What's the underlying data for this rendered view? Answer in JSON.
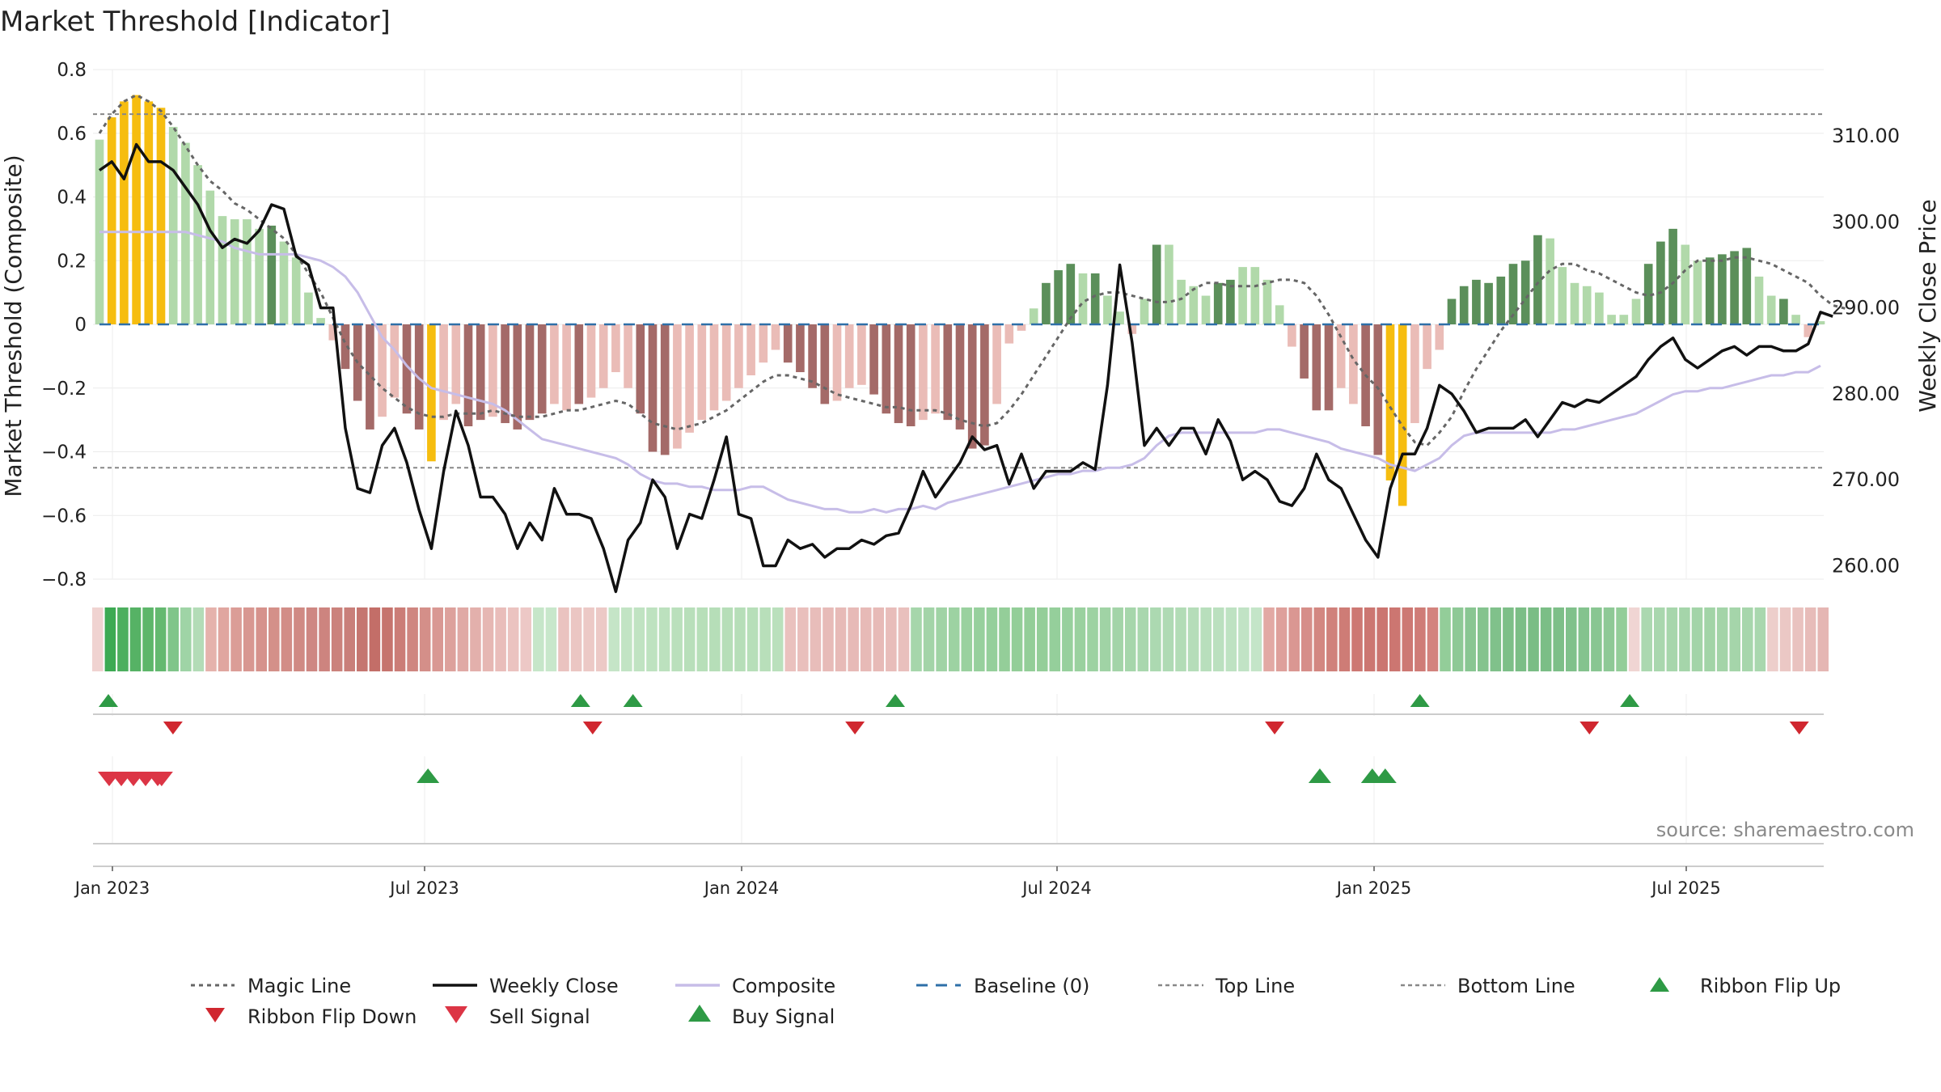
{
  "colors": {
    "bull_strong": "#5b8f5a",
    "bull_light": "#b1d9aa",
    "bear_strong": "#a46a68",
    "bear_light": "#eabcb7",
    "extreme": "#f6bd0f",
    "close_line": "#111111",
    "composite_line": "#c7bde8",
    "magic_line": "#666666",
    "baseline": "#2e6fa8",
    "threshold_line": "#888888",
    "signal_up": "#2e9a45",
    "signal_down": "#d0272f",
    "sell_signal": "#dc3545"
  },
  "chart_data": {
    "type": "bar",
    "title": "Market Threshold [Indicator]",
    "ylabel": "Market Threshold (Composite)",
    "y2label": "Weekly Close Price",
    "ylim": [
      -0.8,
      0.8
    ],
    "y2lim": [
      258,
      316
    ],
    "y_ticks": [
      "0.8",
      "0.6",
      "0.4",
      "0.2",
      "0",
      "−0.2",
      "−0.4",
      "−0.6",
      "−0.8"
    ],
    "y2_ticks": [
      "310.00",
      "300.00",
      "290.00",
      "280.00",
      "270.00",
      "260.00"
    ],
    "x_ticks": [
      "Jan 2023",
      "Jul 2023",
      "Jan 2024",
      "Jul 2024",
      "Jan 2025",
      "Jul 2025"
    ],
    "top_line": 0.66,
    "bottom_line": -0.45,
    "source": "source: sharemaestro.com",
    "composite_bars": [
      0.58,
      0.65,
      0.7,
      0.72,
      0.7,
      0.68,
      0.62,
      0.57,
      0.5,
      0.42,
      0.34,
      0.33,
      0.33,
      0.3,
      0.31,
      0.26,
      0.21,
      0.1,
      0.02,
      -0.05,
      -0.14,
      -0.24,
      -0.33,
      -0.29,
      -0.23,
      -0.28,
      -0.33,
      -0.43,
      -0.3,
      -0.25,
      -0.32,
      -0.3,
      -0.29,
      -0.31,
      -0.33,
      -0.3,
      -0.28,
      -0.25,
      -0.27,
      -0.25,
      -0.23,
      -0.2,
      -0.15,
      -0.2,
      -0.28,
      -0.4,
      -0.41,
      -0.39,
      -0.34,
      -0.3,
      -0.27,
      -0.24,
      -0.2,
      -0.16,
      -0.12,
      -0.08,
      -0.12,
      -0.15,
      -0.2,
      -0.25,
      -0.24,
      -0.2,
      -0.19,
      -0.22,
      -0.28,
      -0.31,
      -0.32,
      -0.3,
      -0.28,
      -0.3,
      -0.33,
      -0.39,
      -0.38,
      -0.25,
      -0.06,
      -0.02,
      0.05,
      0.13,
      0.17,
      0.19,
      0.16,
      0.16,
      0.09,
      0.04,
      -0.03,
      0.08,
      0.25,
      0.25,
      0.14,
      0.12,
      0.09,
      0.13,
      0.14,
      0.18,
      0.18,
      0.14,
      0.06,
      -0.07,
      -0.17,
      -0.27,
      -0.27,
      -0.2,
      -0.25,
      -0.32,
      -0.41,
      -0.49,
      -0.57,
      -0.31,
      -0.14,
      -0.08,
      0.08,
      0.12,
      0.14,
      0.13,
      0.15,
      0.19,
      0.2,
      0.28,
      0.27,
      0.18,
      0.13,
      0.12,
      0.1,
      0.03,
      0.03,
      0.08,
      0.19,
      0.26,
      0.3,
      0.25,
      0.2,
      0.21,
      0.22,
      0.23,
      0.24,
      0.15,
      0.09,
      0.08,
      0.03,
      -0.04,
      0.01
    ],
    "bar_colors": [
      "bull_light",
      "extreme",
      "extreme",
      "extreme",
      "extreme",
      "extreme",
      "bull_light",
      "bull_light",
      "bull_light",
      "bull_light",
      "bull_light",
      "bull_light",
      "bull_light",
      "bull_light",
      "bull_strong",
      "bull_light",
      "bull_light",
      "bull_light",
      "bull_light",
      "bear_light",
      "bear_strong",
      "bear_strong",
      "bear_strong",
      "bear_light",
      "bear_light",
      "bear_strong",
      "bear_strong",
      "extreme",
      "bear_light",
      "bear_light",
      "bear_strong",
      "bear_strong",
      "bear_light",
      "bear_strong",
      "bear_strong",
      "bear_strong",
      "bear_strong",
      "bear_light",
      "bear_light",
      "bear_strong",
      "bear_light",
      "bear_light",
      "bear_light",
      "bear_light",
      "bear_strong",
      "bear_strong",
      "bear_strong",
      "bear_light",
      "bear_light",
      "bear_light",
      "bear_light",
      "bear_light",
      "bear_light",
      "bear_light",
      "bear_light",
      "bear_light",
      "bear_strong",
      "bear_strong",
      "bear_strong",
      "bear_strong",
      "bear_light",
      "bear_light",
      "bear_light",
      "bear_strong",
      "bear_strong",
      "bear_strong",
      "bear_strong",
      "bear_light",
      "bear_light",
      "bear_strong",
      "bear_strong",
      "bear_strong",
      "bear_strong",
      "bear_light",
      "bear_light",
      "bear_light",
      "bull_light",
      "bull_strong",
      "bull_strong",
      "bull_strong",
      "bull_light",
      "bull_strong",
      "bull_light",
      "bull_light",
      "bear_light",
      "bull_light",
      "bull_strong",
      "bull_light",
      "bull_light",
      "bull_light",
      "bull_light",
      "bull_strong",
      "bull_strong",
      "bull_light",
      "bull_light",
      "bull_light",
      "bull_light",
      "bear_light",
      "bear_strong",
      "bear_strong",
      "bear_strong",
      "bear_light",
      "bear_light",
      "bear_strong",
      "bear_strong",
      "extreme",
      "extreme",
      "bear_light",
      "bear_light",
      "bear_light",
      "bull_strong",
      "bull_strong",
      "bull_strong",
      "bull_strong",
      "bull_strong",
      "bull_strong",
      "bull_strong",
      "bull_strong",
      "bull_light",
      "bull_light",
      "bull_light",
      "bull_light",
      "bull_light",
      "bull_light",
      "bull_light",
      "bull_light",
      "bull_strong",
      "bull_strong",
      "bull_strong",
      "bull_light",
      "bull_light",
      "bull_strong",
      "bull_strong",
      "bull_strong",
      "bull_strong",
      "bull_light",
      "bull_light",
      "bull_strong",
      "bull_light",
      "bear_light",
      "bull_light"
    ],
    "weekly_close": [
      306,
      307,
      305,
      309,
      307,
      307,
      306,
      304,
      302,
      299,
      297,
      298,
      297.5,
      299,
      302,
      301.5,
      296,
      295,
      290,
      290,
      276,
      269,
      268.5,
      274,
      276,
      272,
      266.5,
      262,
      271,
      278,
      274,
      268,
      268,
      266,
      262,
      265,
      263,
      269,
      266,
      266,
      265.5,
      262,
      257,
      263,
      265,
      270,
      268,
      262,
      266,
      265.5,
      270,
      275,
      266,
      265.5,
      260,
      260,
      263,
      262,
      262.5,
      261,
      262,
      262,
      263,
      262.5,
      263.5,
      263.8,
      267,
      271,
      268,
      270,
      272,
      275,
      273.5,
      274,
      269.5,
      273,
      269,
      271,
      271,
      271,
      272,
      271.2,
      281,
      295,
      286,
      274,
      276,
      274,
      276,
      276,
      273,
      277,
      274.5,
      270,
      271,
      270,
      267.5,
      267,
      269,
      273,
      270,
      269,
      266,
      263,
      261,
      269,
      273,
      273,
      276,
      281,
      280,
      278,
      275.5,
      276,
      276,
      276,
      277,
      275,
      277,
      279,
      278.5,
      279.3,
      279,
      280,
      281,
      282,
      284,
      285.5,
      286.5,
      284,
      283,
      284,
      285,
      285.5,
      284.5,
      285.5,
      285.5,
      285,
      285,
      285.8,
      289.5,
      289
    ],
    "composite_line": [
      0.29,
      0.29,
      0.29,
      0.29,
      0.29,
      0.29,
      0.29,
      0.29,
      0.28,
      0.27,
      0.26,
      0.24,
      0.23,
      0.22,
      0.22,
      0.22,
      0.22,
      0.21,
      0.2,
      0.18,
      0.15,
      0.1,
      0.03,
      -0.04,
      -0.08,
      -0.13,
      -0.17,
      -0.2,
      -0.21,
      -0.22,
      -0.23,
      -0.24,
      -0.25,
      -0.27,
      -0.3,
      -0.33,
      -0.36,
      -0.37,
      -0.38,
      -0.39,
      -0.4,
      -0.41,
      -0.42,
      -0.44,
      -0.47,
      -0.49,
      -0.5,
      -0.5,
      -0.51,
      -0.51,
      -0.52,
      -0.52,
      -0.52,
      -0.51,
      -0.51,
      -0.53,
      -0.55,
      -0.56,
      -0.57,
      -0.58,
      -0.58,
      -0.59,
      -0.59,
      -0.58,
      -0.59,
      -0.58,
      -0.58,
      -0.57,
      -0.58,
      -0.56,
      -0.55,
      -0.54,
      -0.53,
      -0.52,
      -0.51,
      -0.5,
      -0.49,
      -0.48,
      -0.47,
      -0.47,
      -0.46,
      -0.46,
      -0.45,
      -0.45,
      -0.44,
      -0.42,
      -0.38,
      -0.35,
      -0.34,
      -0.34,
      -0.34,
      -0.34,
      -0.34,
      -0.34,
      -0.34,
      -0.33,
      -0.33,
      -0.34,
      -0.35,
      -0.36,
      -0.37,
      -0.39,
      -0.4,
      -0.41,
      -0.42,
      -0.44,
      -0.45,
      -0.46,
      -0.44,
      -0.42,
      -0.38,
      -0.35,
      -0.34,
      -0.34,
      -0.34,
      -0.34,
      -0.34,
      -0.34,
      -0.34,
      -0.33,
      -0.33,
      -0.32,
      -0.31,
      -0.3,
      -0.29,
      -0.28,
      -0.26,
      -0.24,
      -0.22,
      -0.21,
      -0.21,
      -0.2,
      -0.2,
      -0.19,
      -0.18,
      -0.17,
      -0.16,
      -0.16,
      -0.15,
      -0.15,
      -0.13
    ],
    "magic_line": [
      0.6,
      0.66,
      0.7,
      0.72,
      0.7,
      0.67,
      0.62,
      0.56,
      0.5,
      0.45,
      0.42,
      0.38,
      0.36,
      0.33,
      0.3,
      0.27,
      0.22,
      0.16,
      0.1,
      0.02,
      -0.06,
      -0.12,
      -0.16,
      -0.2,
      -0.23,
      -0.26,
      -0.28,
      -0.29,
      -0.29,
      -0.28,
      -0.28,
      -0.28,
      -0.27,
      -0.28,
      -0.29,
      -0.29,
      -0.29,
      -0.28,
      -0.27,
      -0.27,
      -0.26,
      -0.25,
      -0.24,
      -0.25,
      -0.28,
      -0.31,
      -0.32,
      -0.33,
      -0.32,
      -0.31,
      -0.29,
      -0.27,
      -0.24,
      -0.21,
      -0.18,
      -0.16,
      -0.16,
      -0.17,
      -0.18,
      -0.2,
      -0.22,
      -0.23,
      -0.24,
      -0.25,
      -0.26,
      -0.26,
      -0.27,
      -0.27,
      -0.27,
      -0.28,
      -0.3,
      -0.31,
      -0.32,
      -0.31,
      -0.27,
      -0.22,
      -0.16,
      -0.1,
      -0.04,
      0.02,
      0.07,
      0.09,
      0.1,
      0.1,
      0.09,
      0.08,
      0.07,
      0.07,
      0.08,
      0.11,
      0.13,
      0.13,
      0.12,
      0.12,
      0.12,
      0.13,
      0.14,
      0.14,
      0.13,
      0.09,
      0.03,
      -0.04,
      -0.11,
      -0.16,
      -0.2,
      -0.26,
      -0.32,
      -0.37,
      -0.38,
      -0.34,
      -0.29,
      -0.21,
      -0.14,
      -0.08,
      -0.02,
      0.03,
      0.08,
      0.13,
      0.17,
      0.19,
      0.19,
      0.17,
      0.16,
      0.14,
      0.12,
      0.1,
      0.09,
      0.1,
      0.13,
      0.17,
      0.2,
      0.2,
      0.2,
      0.21,
      0.21,
      0.2,
      0.19,
      0.17,
      0.15,
      0.13,
      0.09,
      0.06,
      0.05
    ],
    "ribbon_colors": [
      "#f0d3d1",
      "#3daa53",
      "#4caf5e",
      "#56b265",
      "#5db66a",
      "#64b970",
      "#80c58a",
      "#9fd4a6",
      "#b3dcb7",
      "#e5b2ac",
      "#e0a6a0",
      "#db9d97",
      "#d89791",
      "#d6928c",
      "#d49089",
      "#d28d87",
      "#d08a84",
      "#ce8782",
      "#cd847f",
      "#cb827c",
      "#c97f7a",
      "#c57670",
      "#c36e68",
      "#c6746e",
      "#cb7d77",
      "#cf8680",
      "#d48f89",
      "#d99893",
      "#dda19c",
      "#e0a9a5",
      "#e3b0ac",
      "#e6b7b3",
      "#e9bdba",
      "#ebc3c0",
      "#edc8c6",
      "#c6e6c9",
      "#c8e7cb",
      "#eac3c0",
      "#ebc6c3",
      "#ecc9c6",
      "#ecc9c6",
      "#c5e5c7",
      "#c2e4c4",
      "#c0e3c2",
      "#bee2c0",
      "#bce1be",
      "#bae0bc",
      "#b8dfba",
      "#b7dfb9",
      "#b6deb8",
      "#b6deb8",
      "#b6deb8",
      "#b7dfb9",
      "#b8dfba",
      "#bae0bc",
      "#eac1be",
      "#e9bfbc",
      "#e8bdba",
      "#e7bbb8",
      "#e7bab7",
      "#e7bab7",
      "#e7bab7",
      "#e7bab7",
      "#e8bdba",
      "#e9c0bd",
      "#a6d6ab",
      "#a3d4a8",
      "#a0d3a5",
      "#9dd2a2",
      "#9ad19f",
      "#97d09d",
      "#95cf9b",
      "#94ce99",
      "#93ce98",
      "#93ce98",
      "#94ce99",
      "#95cf9b",
      "#97d09d",
      "#9ad19f",
      "#9dd2a2",
      "#a0d3a5",
      "#a3d4a8",
      "#a6d6ab",
      "#a9d7ae",
      "#acd9b1",
      "#afdab4",
      "#b2dcb6",
      "#b5ddb9",
      "#b8dfbc",
      "#bbe0bf",
      "#bee2c2",
      "#c1e3c5",
      "#c4e5c8",
      "#e2a9a4",
      "#dea09b",
      "#da9792",
      "#d68e89",
      "#d38781",
      "#d0817b",
      "#ce7c76",
      "#cd7873",
      "#cc7671",
      "#cb7570",
      "#cc7671",
      "#cd7873",
      "#cf7c77",
      "#d3837e",
      "#93cd99",
      "#8ec996",
      "#89c692",
      "#84c38e",
      "#80c18b",
      "#7dbf88",
      "#7bbe86",
      "#7abd85",
      "#7bbe86",
      "#7dbf88",
      "#80c18b",
      "#84c38e",
      "#89c692",
      "#8ec996",
      "#93cd99",
      "#f0d5d3",
      "#abd8b0",
      "#a9d7ae",
      "#a7d6ac",
      "#a5d5aa",
      "#a3d4a8",
      "#a2d4a7",
      "#a3d4a8",
      "#a5d5aa",
      "#a7d6ac",
      "#a9d7ae",
      "#edcecb",
      "#ebc8c5",
      "#e9c2bf",
      "#e7bcb9",
      "#e5b6b3"
    ],
    "ribbon_flip_up": [
      "Jan 2023",
      "Oct 2023",
      "Nov 2023",
      "Apr 2024",
      "Feb 2025",
      "Jun 2025"
    ],
    "ribbon_flip_down": [
      "Feb 2023",
      "Oct 2023",
      "Mar 2024",
      "Nov 2024",
      "May 2025",
      "Sep 2025"
    ],
    "sell_signal": [
      "Jan 2023",
      "Jan 2023",
      "Jan 2023",
      "Jan 2023",
      "Jan 2023",
      "Feb 2023"
    ],
    "buy_signal": [
      "Jul 2023",
      "Dec 2024",
      "Jan 2025",
      "Jan 2025"
    ],
    "legend": [
      "Magic Line",
      "Weekly Close",
      "Composite",
      "Baseline (0)",
      "Top Line",
      "Bottom Line",
      "Ribbon Flip Up",
      "Ribbon Flip Down",
      "Sell Signal",
      "Buy Signal"
    ]
  }
}
